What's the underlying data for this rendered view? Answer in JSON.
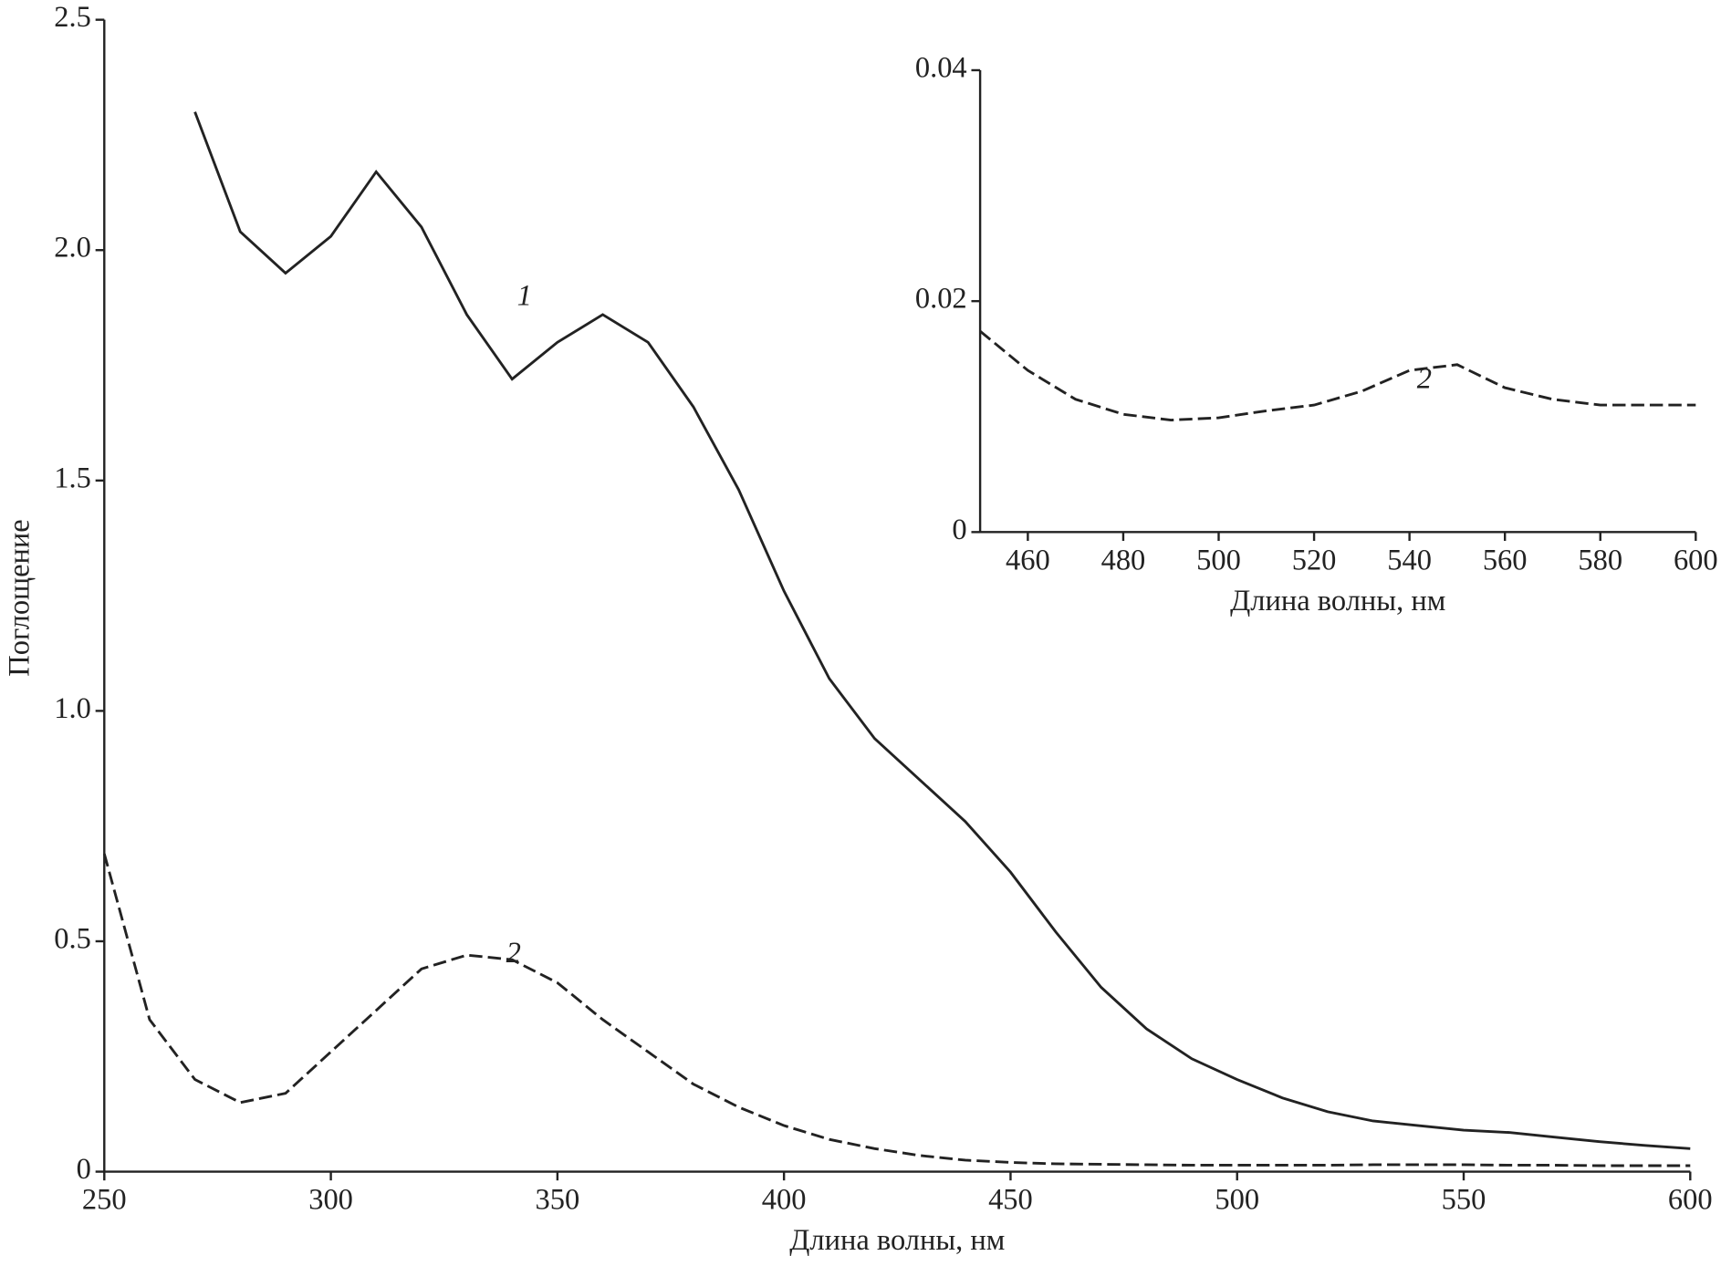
{
  "chart_data": [
    {
      "type": "line",
      "x_label": "Длина волны, нм",
      "y_label": "Поглощение",
      "x": [
        250,
        260,
        270,
        280,
        290,
        300,
        310,
        320,
        330,
        340,
        350,
        360,
        370,
        380,
        390,
        400,
        410,
        420,
        430,
        440,
        450,
        460,
        470,
        480,
        490,
        500,
        510,
        520,
        530,
        540,
        550,
        560,
        570,
        580,
        590,
        600
      ],
      "series": [
        {
          "name": "1",
          "color": "#222222",
          "linestyle": "solid",
          "values": [
            null,
            null,
            2.3,
            2.04,
            1.95,
            2.03,
            2.17,
            2.05,
            1.86,
            1.72,
            1.8,
            1.86,
            1.8,
            1.66,
            1.48,
            1.26,
            1.07,
            0.94,
            0.85,
            0.76,
            0.65,
            0.52,
            0.4,
            0.31,
            0.245,
            0.2,
            0.16,
            0.13,
            0.11,
            0.1,
            0.09,
            0.085,
            0.075,
            0.065,
            0.057,
            0.05
          ]
        },
        {
          "name": "2",
          "color": "#222222",
          "linestyle": "dashed",
          "values": [
            0.69,
            0.33,
            0.2,
            0.15,
            0.17,
            0.26,
            0.35,
            0.44,
            0.47,
            0.46,
            0.41,
            0.33,
            0.26,
            0.19,
            0.14,
            0.1,
            0.07,
            0.05,
            0.035,
            0.025,
            0.02,
            0.017,
            0.016,
            0.015,
            0.014,
            0.014,
            0.014,
            0.014,
            0.015,
            0.015,
            0.015,
            0.014,
            0.014,
            0.013,
            0.013,
            0.013
          ]
        }
      ],
      "xlim": [
        250,
        600
      ],
      "xticks": [
        250,
        300,
        350,
        400,
        450,
        500,
        550,
        600
      ],
      "ylim": [
        0,
        2.5
      ],
      "yticks": [
        0,
        0.5,
        {
          "value": 1,
          "label": "1.0"
        },
        1.5,
        {
          "value": 2,
          "label": "2.0"
        },
        2.5
      ]
    },
    {
      "type": "line",
      "x_label": "Длина волны, нм",
      "x": [
        450,
        460,
        470,
        480,
        490,
        500,
        510,
        520,
        530,
        540,
        550,
        560,
        570,
        580,
        590,
        600
      ],
      "series": [
        {
          "name": "2",
          "color": "#222222",
          "linestyle": "dashed",
          "values": [
            0.0174,
            0.014,
            0.0115,
            0.0102,
            0.0097,
            0.0099,
            0.0105,
            0.011,
            0.0122,
            0.014,
            0.0145,
            0.0125,
            0.0115,
            0.011,
            0.011,
            0.011
          ]
        }
      ],
      "xlim": [
        450,
        600
      ],
      "xticks": [
        460,
        480,
        500,
        520,
        540,
        560,
        580,
        600
      ],
      "ylim": [
        0,
        0.04
      ],
      "yticks": [
        0,
        0.02,
        0.04
      ]
    }
  ]
}
